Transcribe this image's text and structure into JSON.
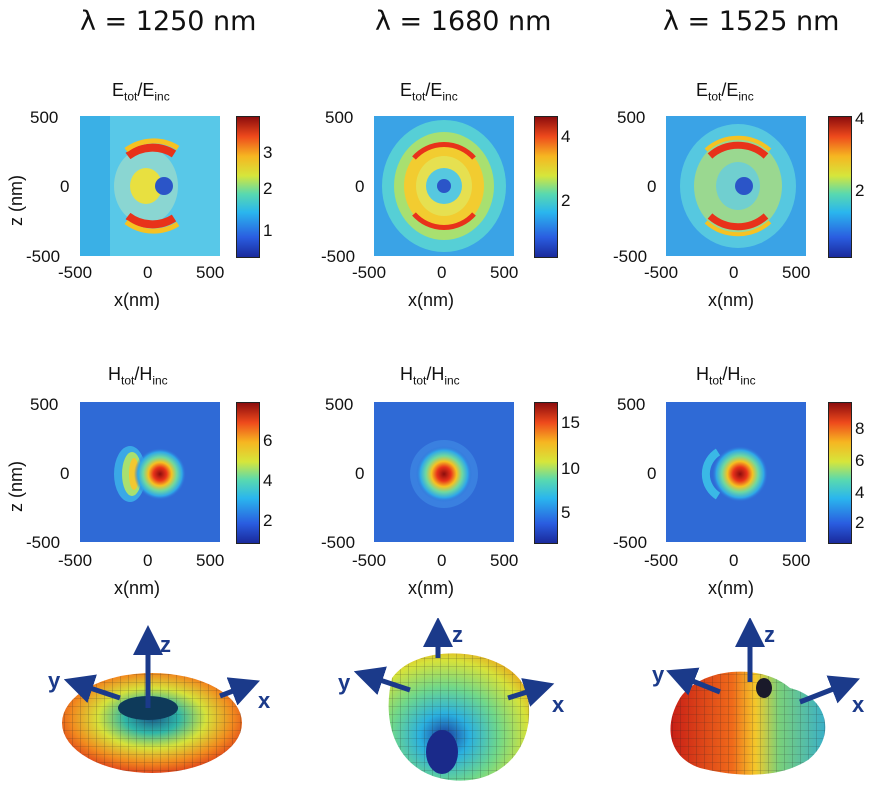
{
  "columns": [
    {
      "wavelength": "λ = 1250 nm"
    },
    {
      "wavelength": "λ = 1680 nm"
    },
    {
      "wavelength": "λ = 1525 nm"
    }
  ],
  "e_title": {
    "main": "E",
    "sub1": "tot",
    "slash": "/E",
    "sub2": "inc"
  },
  "h_title": {
    "main": "H",
    "sub1": "tot",
    "slash": "/H",
    "sub2": "inc"
  },
  "axes": {
    "xlabel": "x(nm)",
    "ylabel": "z (nm)",
    "ticks": {
      "neg": "-500",
      "zero": "0",
      "pos": "500"
    }
  },
  "colorbars": {
    "e": [
      [
        "3",
        "2",
        "1"
      ],
      [
        "4",
        "2"
      ],
      [
        "4",
        "2"
      ]
    ],
    "h": [
      [
        "6",
        "4",
        "2"
      ],
      [
        "15",
        "10",
        "5"
      ],
      [
        "8",
        "6",
        "4",
        "2"
      ]
    ]
  },
  "axes3d": {
    "x": "x",
    "y": "y",
    "z": "z"
  },
  "colors": {
    "axis_arrow": "#1b3a8a"
  }
}
